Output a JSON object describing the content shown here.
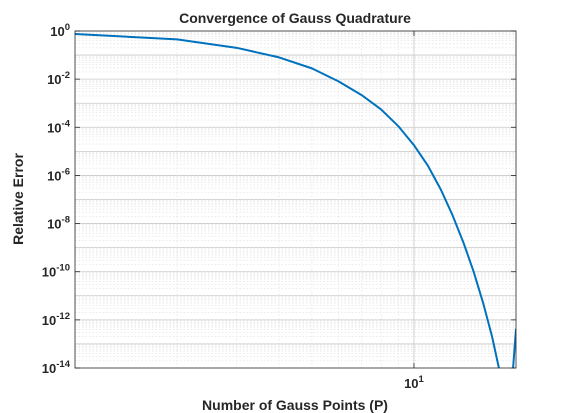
{
  "chart_data": {
    "type": "line",
    "title": "Convergence of Gauss Quadrature",
    "xlabel": "Number of Gauss Points (P)",
    "ylabel": "Relative Error",
    "xscale": "log",
    "yscale": "log",
    "xlim": [
      1,
      20
    ],
    "ylim": [
      1e-14,
      1
    ],
    "grid": true,
    "minor_grid": true,
    "x_ticks": [
      {
        "value": 10,
        "base": "10",
        "exp": "1"
      }
    ],
    "y_ticks": [
      {
        "value": 1,
        "base": "10",
        "exp": "0"
      },
      {
        "value": 0.01,
        "base": "10",
        "exp": "-2"
      },
      {
        "value": 0.0001,
        "base": "10",
        "exp": "-4"
      },
      {
        "value": 1e-06,
        "base": "10",
        "exp": "-6"
      },
      {
        "value": 1e-08,
        "base": "10",
        "exp": "-8"
      },
      {
        "value": 1e-10,
        "base": "10",
        "exp": "-10"
      },
      {
        "value": 1e-12,
        "base": "10",
        "exp": "-12"
      },
      {
        "value": 1e-14,
        "base": "10",
        "exp": "-14"
      }
    ],
    "series": [
      {
        "color": "#0072bd",
        "x": [
          1,
          2,
          3,
          4,
          5,
          6,
          7,
          8,
          9,
          10,
          11,
          12,
          13,
          14,
          15,
          16,
          17,
          18,
          19,
          20
        ],
        "y": [
          0.75,
          0.45,
          0.2,
          0.08,
          0.028,
          0.008,
          0.0022,
          0.00055,
          0.00011,
          1.8e-05,
          2.5e-06,
          2.6e-07,
          2.2e-08,
          1.6e-09,
          1e-10,
          5e-12,
          2e-13,
          5e-15,
          3e-17,
          4e-13
        ]
      }
    ]
  }
}
